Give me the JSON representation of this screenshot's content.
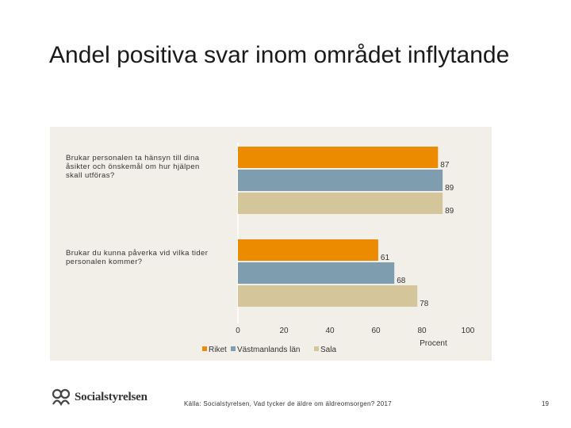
{
  "slide": {
    "title": "Andel positiva svar inom området inflytande",
    "source": "Källa: Socialstyrelsen, Vad tycker de äldre om äldreomsorgen? 2017",
    "page_number": "19",
    "logo_text": "Socialstyrelsen"
  },
  "colors": {
    "Riket": "#ed8b00",
    "Västmanlands län": "#7e9dae",
    "Sala": "#d5c59a",
    "panel_background": "#f1efe7"
  },
  "chart_data": {
    "type": "bar",
    "orientation": "horizontal",
    "categories": [
      "Brukar personalen ta hänsyn till dina åsikter och önskemål om hur hjälpen skall utföras?",
      "Brukar du kunna påverka vid vilka tider personalen kommer?"
    ],
    "series": [
      {
        "name": "Riket",
        "values": [
          87,
          61
        ]
      },
      {
        "name": "Västmanlands län",
        "values": [
          89,
          68
        ]
      },
      {
        "name": "Sala",
        "values": [
          89,
          78
        ]
      }
    ],
    "xlabel": "Procent",
    "xlim": [
      0,
      100
    ],
    "x_ticks": [
      "0",
      "20",
      "40",
      "60",
      "80",
      "100"
    ],
    "legend_position": "bottom",
    "grid": false
  }
}
